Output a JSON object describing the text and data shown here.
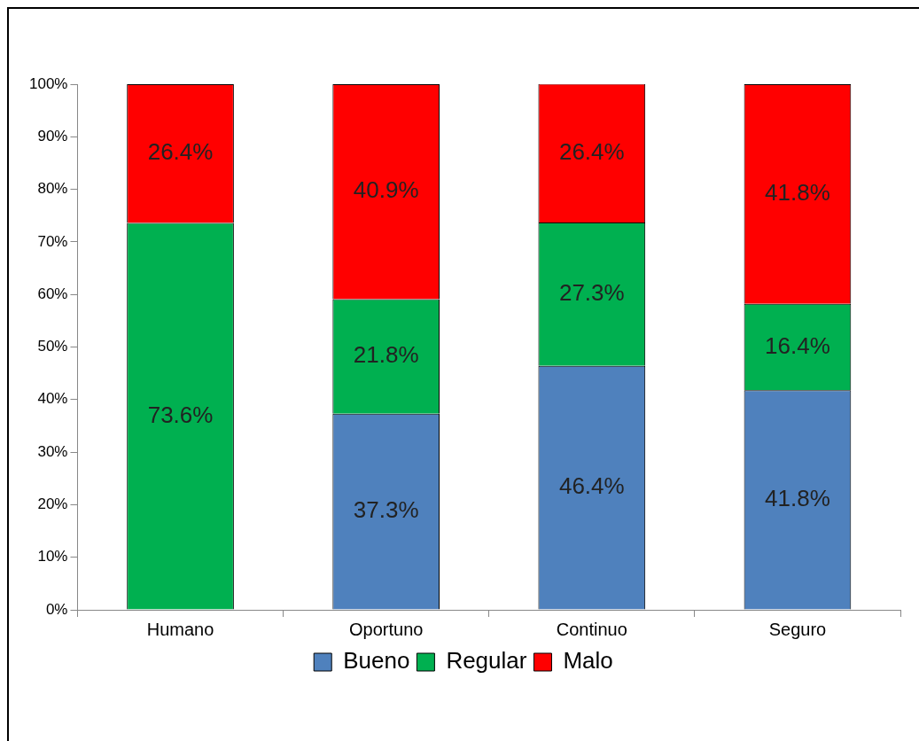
{
  "chart_data": {
    "type": "bar",
    "stacked": true,
    "categories": [
      "Humano",
      "Oportuno",
      "Continuo",
      "Seguro"
    ],
    "series": [
      {
        "name": "Bueno",
        "color": "#4f81bd",
        "values": [
          0,
          37.3,
          46.4,
          41.8
        ],
        "value_labels": [
          null,
          "37.3%",
          "46.4%",
          "41.8%"
        ]
      },
      {
        "name": "Regular",
        "color": "#00b050",
        "values": [
          73.6,
          21.8,
          27.3,
          16.4
        ],
        "value_labels": [
          "73.6%",
          "21.8%",
          "27.3%",
          "16.4%"
        ]
      },
      {
        "name": "Malo",
        "color": "#ff0000",
        "values": [
          26.4,
          40.9,
          26.4,
          41.8
        ],
        "value_labels": [
          "26.4%",
          "40.9%",
          "26.4%",
          "41.8%"
        ]
      }
    ],
    "ylim": [
      0,
      100
    ],
    "yticks": [
      {
        "value": 0,
        "label": "0%"
      },
      {
        "value": 10,
        "label": "10%"
      },
      {
        "value": 20,
        "label": "20%"
      },
      {
        "value": 30,
        "label": "30%"
      },
      {
        "value": 40,
        "label": "40%"
      },
      {
        "value": 50,
        "label": "50%"
      },
      {
        "value": 60,
        "label": "60%"
      },
      {
        "value": 70,
        "label": "70%"
      },
      {
        "value": 80,
        "label": "80%"
      },
      {
        "value": 90,
        "label": "90%"
      },
      {
        "value": 100,
        "label": "100%"
      }
    ],
    "grid": false,
    "legend": "bottom"
  }
}
